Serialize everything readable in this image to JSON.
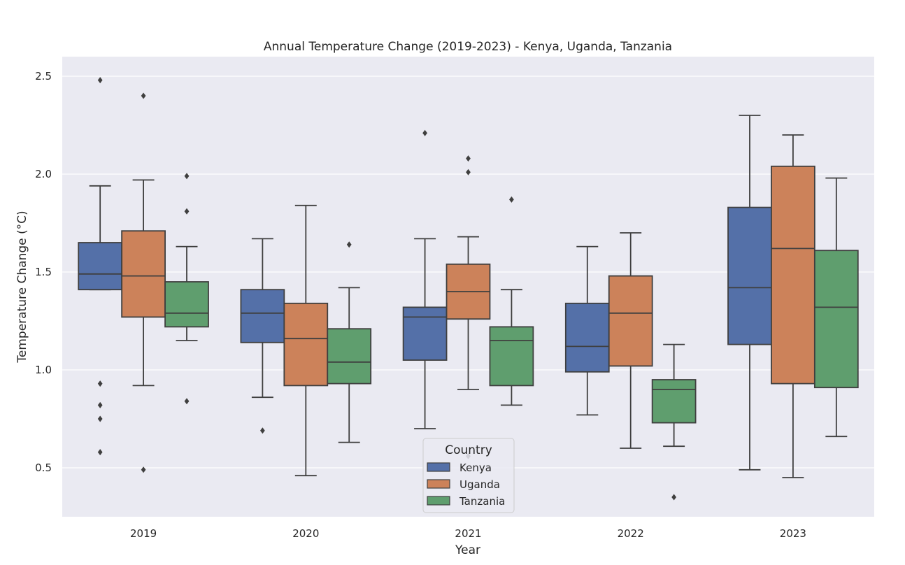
{
  "chart_data": {
    "type": "box",
    "title": "Annual Temperature Change (2019-2023) - Kenya, Uganda, Tanzania",
    "xlabel": "Year",
    "ylabel": "Temperature Change (°C)",
    "categories": [
      "2019",
      "2020",
      "2021",
      "2022",
      "2023"
    ],
    "ylim": [
      0.25,
      2.6
    ],
    "yticks": [
      "0.5",
      "1.0",
      "1.5",
      "2.0",
      "2.5"
    ],
    "ytick_values": [
      0.5,
      1.0,
      1.5,
      2.0,
      2.5
    ],
    "grid": true,
    "legend": {
      "title": "Country",
      "position": "lower-center"
    },
    "colors": {
      "Kenya": "#5470a8",
      "Uganda": "#cc825a",
      "Tanzania": "#5f9e6e",
      "background": "#eaeaf2",
      "line": "#3f3f3f"
    },
    "series": [
      {
        "name": "Kenya",
        "boxes": [
          {
            "whislo": 1.41,
            "q1": 1.41,
            "med": 1.49,
            "q3": 1.65,
            "whishi": 1.94,
            "fliers": [
              2.48,
              0.93,
              0.82,
              0.75,
              0.58
            ]
          },
          {
            "whislo": 0.86,
            "q1": 1.14,
            "med": 1.29,
            "q3": 1.41,
            "whishi": 1.67,
            "fliers": [
              0.69
            ]
          },
          {
            "whislo": 0.7,
            "q1": 1.05,
            "med": 1.27,
            "q3": 1.32,
            "whishi": 1.67,
            "fliers": [
              2.21
            ]
          },
          {
            "whislo": 0.77,
            "q1": 0.99,
            "med": 1.12,
            "q3": 1.34,
            "whishi": 1.63,
            "fliers": []
          },
          {
            "whislo": 0.49,
            "q1": 1.13,
            "med": 1.42,
            "q3": 1.83,
            "whishi": 2.3,
            "fliers": []
          }
        ]
      },
      {
        "name": "Uganda",
        "boxes": [
          {
            "whislo": 0.92,
            "q1": 1.27,
            "med": 1.48,
            "q3": 1.71,
            "whishi": 1.97,
            "fliers": [
              2.4,
              0.49
            ]
          },
          {
            "whislo": 0.46,
            "q1": 0.92,
            "med": 1.16,
            "q3": 1.34,
            "whishi": 1.84,
            "fliers": []
          },
          {
            "whislo": 0.9,
            "q1": 1.26,
            "med": 1.4,
            "q3": 1.54,
            "whishi": 1.68,
            "fliers": [
              2.08,
              2.01,
              0.56
            ]
          },
          {
            "whislo": 0.6,
            "q1": 1.02,
            "med": 1.29,
            "q3": 1.48,
            "whishi": 1.7,
            "fliers": []
          },
          {
            "whislo": 0.45,
            "q1": 0.93,
            "med": 1.62,
            "q3": 2.04,
            "whishi": 2.2,
            "fliers": []
          }
        ]
      },
      {
        "name": "Tanzania",
        "boxes": [
          {
            "whislo": 1.15,
            "q1": 1.22,
            "med": 1.29,
            "q3": 1.45,
            "whishi": 1.63,
            "fliers": [
              1.99,
              1.81,
              0.84
            ]
          },
          {
            "whislo": 0.63,
            "q1": 0.93,
            "med": 1.04,
            "q3": 1.21,
            "whishi": 1.42,
            "fliers": [
              1.64
            ]
          },
          {
            "whislo": 0.82,
            "q1": 0.92,
            "med": 1.15,
            "q3": 1.22,
            "whishi": 1.41,
            "fliers": [
              1.87
            ]
          },
          {
            "whislo": 0.61,
            "q1": 0.73,
            "med": 0.9,
            "q3": 0.95,
            "whishi": 1.13,
            "fliers": [
              0.35
            ]
          },
          {
            "whislo": 0.66,
            "q1": 0.91,
            "med": 1.32,
            "q3": 1.61,
            "whishi": 1.98,
            "fliers": []
          }
        ]
      }
    ]
  }
}
